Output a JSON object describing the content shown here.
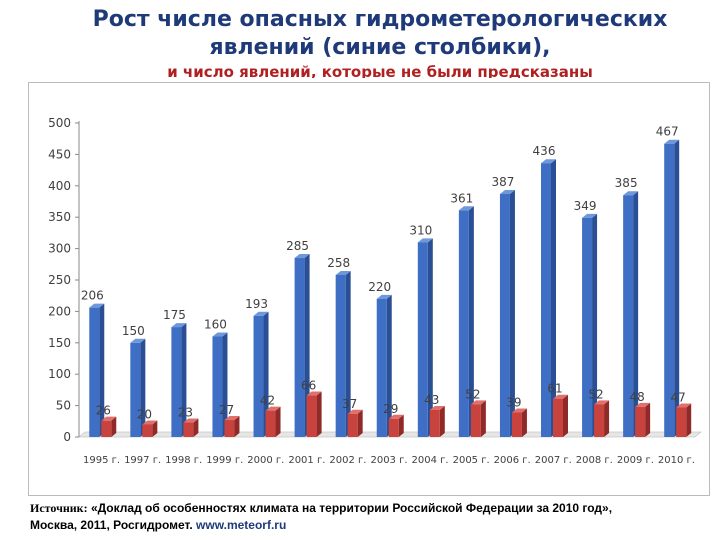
{
  "header": {
    "title_line1": "Рост числе опасных гидрометерологических",
    "title_line2": "явлений (синие столбики),",
    "subtitle": "и число явлений, которые не были предсказаны"
  },
  "source": {
    "label": "Источник:",
    "text": "«Доклад об особенностях климата на территории Российской Федерации за 2010 год»,",
    "line2": "Москва, 2011, Росгидромет.",
    "url": "www.meteorf.ru"
  },
  "colors": {
    "blue_front": "#3f6fc4",
    "blue_side": "#2a4f94",
    "blue_top": "#6f98dc",
    "red_front": "#c8423e",
    "red_side": "#8f2a28",
    "red_top": "#e0706c",
    "label_color": "#404040"
  },
  "chart_data": {
    "type": "bar",
    "categories": [
      "1995 г.",
      "1997 г.",
      "1998 г.",
      "1999 г.",
      "2000 г.",
      "2001 г.",
      "2002 г.",
      "2003 г.",
      "2004 г.",
      "2005 г.",
      "2006 г.",
      "2007 г.",
      "2008 г.",
      "2009 г.",
      "2010 г."
    ],
    "series": [
      {
        "values": [
          206,
          150,
          175,
          160,
          193,
          285,
          258,
          220,
          310,
          361,
          387,
          436,
          349,
          385,
          467
        ]
      },
      {
        "values": [
          26,
          20,
          23,
          27,
          42,
          66,
          37,
          29,
          43,
          52,
          39,
          61,
          52,
          48,
          47
        ]
      }
    ],
    "yticks": [
      0,
      50,
      100,
      150,
      200,
      250,
      300,
      350,
      400,
      450,
      500
    ],
    "ylim": [
      0,
      500
    ],
    "grid": false,
    "style": "3d-bars"
  }
}
